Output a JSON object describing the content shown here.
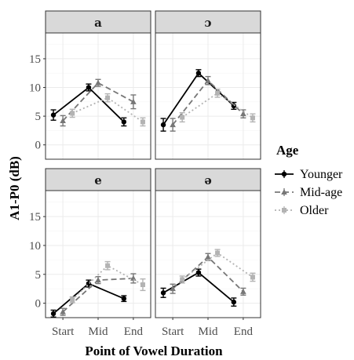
{
  "chart_data": {
    "type": "line",
    "xlabel": "Point of Vowel Duration",
    "ylabel": "A1-P0 (dB)",
    "x_categories": [
      "Start",
      "Mid",
      "End"
    ],
    "ylim": [
      -2.5,
      19.5
    ],
    "yticks": [
      0,
      5,
      10,
      15
    ],
    "legend": {
      "title": "Age",
      "placement": "right",
      "entries": [
        {
          "name": "Younger",
          "color": "#000000",
          "marker": "circle",
          "dash": "solid"
        },
        {
          "name": "Mid-age",
          "color": "#777777",
          "marker": "triangle",
          "dash": "dashed"
        },
        {
          "name": "Older",
          "color": "#b3b3b3",
          "marker": "square",
          "dash": "dotted"
        }
      ]
    },
    "panels": [
      {
        "label": "a",
        "series": [
          {
            "name": "Younger",
            "values": [
              5.2,
              10.0,
              4.0
            ],
            "errors": [
              0.9,
              0.6,
              0.7
            ]
          },
          {
            "name": "Mid-age",
            "values": [
              4.2,
              10.8,
              7.5
            ],
            "errors": [
              0.9,
              0.6,
              1.2
            ]
          },
          {
            "name": "Older",
            "values": [
              5.5,
              8.2,
              4.0
            ],
            "errors": [
              0.7,
              0.7,
              0.7
            ]
          }
        ]
      },
      {
        "label": "ɔ",
        "series": [
          {
            "name": "Younger",
            "values": [
              3.5,
              12.5,
              6.8
            ],
            "errors": [
              1.1,
              0.6,
              0.6
            ]
          },
          {
            "name": "Mid-age",
            "values": [
              3.5,
              11.2,
              5.4
            ],
            "errors": [
              1.1,
              0.7,
              0.7
            ]
          },
          {
            "name": "Older",
            "values": [
              4.8,
              9.0,
              4.7
            ],
            "errors": [
              0.8,
              0.7,
              0.7
            ]
          }
        ]
      },
      {
        "label": "e",
        "series": [
          {
            "name": "Younger",
            "values": [
              -1.8,
              3.4,
              0.8
            ],
            "errors": [
              0.6,
              0.6,
              0.5
            ]
          },
          {
            "name": "Mid-age",
            "values": [
              -1.5,
              4.0,
              4.3
            ],
            "errors": [
              0.6,
              0.6,
              0.8
            ]
          },
          {
            "name": "Older",
            "values": [
              0.6,
              6.5,
              3.2
            ],
            "errors": [
              0.5,
              0.7,
              1.0
            ]
          }
        ]
      },
      {
        "label": "ə",
        "series": [
          {
            "name": "Younger",
            "values": [
              1.8,
              5.3,
              0.2
            ],
            "errors": [
              0.8,
              0.6,
              0.7
            ]
          },
          {
            "name": "Mid-age",
            "values": [
              2.5,
              8.0,
              2.0
            ],
            "errors": [
              0.8,
              0.6,
              0.6
            ]
          },
          {
            "name": "Older",
            "values": [
              4.1,
              8.7,
              4.5
            ],
            "errors": [
              0.6,
              0.6,
              0.7
            ]
          }
        ]
      }
    ]
  }
}
